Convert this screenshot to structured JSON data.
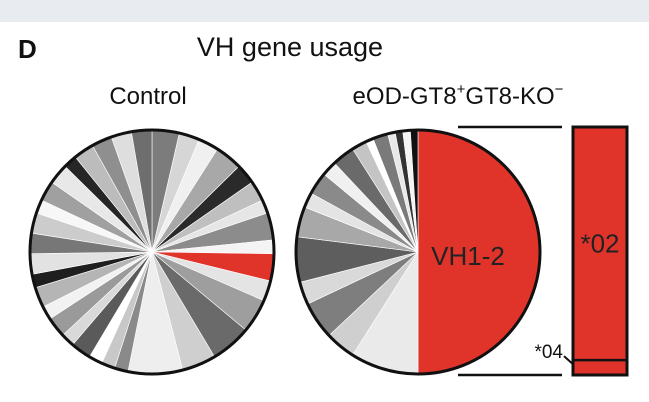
{
  "panel_label": "D",
  "chart_data": {
    "type": "pie",
    "title": "VH gene usage",
    "pies": [
      {
        "name": "Control",
        "highlight_color": "#e0342b",
        "slices": [
          {
            "value": 4,
            "color": "#7c7c7c"
          },
          {
            "value": 3,
            "color": "#d6d6d6"
          },
          {
            "value": 3,
            "color": "#f0f0f0"
          },
          {
            "value": 4,
            "color": "#a8a8a8"
          },
          {
            "value": 3,
            "color": "#2a2a2a"
          },
          {
            "value": 3,
            "color": "#bfbfbf"
          },
          {
            "value": 2,
            "color": "#e6e6e6"
          },
          {
            "value": 4,
            "color": "#8c8c8c"
          },
          {
            "value": 2,
            "color": "#f4f4f4"
          },
          {
            "value": 4,
            "color": "#e0342b"
          },
          {
            "value": 3,
            "color": "#e4e4e4"
          },
          {
            "value": 5,
            "color": "#9e9e9e"
          },
          {
            "value": 6,
            "color": "#6a6a6a"
          },
          {
            "value": 5,
            "color": "#cfcfcf"
          },
          {
            "value": 8,
            "color": "#eeeeee"
          },
          {
            "value": 2,
            "color": "#8a8a8a"
          },
          {
            "value": 2,
            "color": "#c8c8c8"
          },
          {
            "value": 2,
            "color": "#ffffff"
          },
          {
            "value": 3,
            "color": "#5a5a5a"
          },
          {
            "value": 2,
            "color": "#d9d9d9"
          },
          {
            "value": 3,
            "color": "#9a9a9a"
          },
          {
            "value": 2,
            "color": "#f2f2f2"
          },
          {
            "value": 3,
            "color": "#b5b5b5"
          },
          {
            "value": 2,
            "color": "#1e1e1e"
          },
          {
            "value": 3,
            "color": "#e2e2e2"
          },
          {
            "value": 3,
            "color": "#777777"
          },
          {
            "value": 3,
            "color": "#cccccc"
          },
          {
            "value": 2,
            "color": "#f7f7f7"
          },
          {
            "value": 3,
            "color": "#a0a0a0"
          },
          {
            "value": 3,
            "color": "#e8e8e8"
          },
          {
            "value": 2,
            "color": "#262626"
          },
          {
            "value": 3,
            "color": "#bcbcbc"
          },
          {
            "value": 3,
            "color": "#8f8f8f"
          },
          {
            "value": 3,
            "color": "#dedede"
          },
          {
            "value": 3,
            "color": "#6e6e6e"
          }
        ]
      },
      {
        "name": "eOD-GT8",
        "name_sup1": "+",
        "name_mid": "GT8-KO",
        "name_sup2": "−",
        "slices": [
          {
            "value": 50,
            "color": "#e0342b",
            "label": "VH1-2"
          },
          {
            "value": 9,
            "color": "#eaeaea"
          },
          {
            "value": 4,
            "color": "#cfcfcf"
          },
          {
            "value": 5,
            "color": "#7e7e7e"
          },
          {
            "value": 3,
            "color": "#d9d9d9"
          },
          {
            "value": 6,
            "color": "#5e5e5e"
          },
          {
            "value": 4,
            "color": "#a8a8a8"
          },
          {
            "value": 2,
            "color": "#e4e4e4"
          },
          {
            "value": 3,
            "color": "#8a8a8a"
          },
          {
            "value": 2,
            "color": "#f0f0f0"
          },
          {
            "value": 3,
            "color": "#6a6a6a"
          },
          {
            "value": 2,
            "color": "#c4c4c4"
          },
          {
            "value": 1,
            "color": "#ffffff"
          },
          {
            "value": 2,
            "color": "#7a7a7a"
          },
          {
            "value": 1,
            "color": "#e8e8e8"
          },
          {
            "value": 1,
            "color": "#333333"
          },
          {
            "value": 1,
            "color": "#f4f4f4"
          },
          {
            "value": 1,
            "color": "#111111"
          }
        ]
      }
    ],
    "breakdown": {
      "of": "VH1-2",
      "color": "#e0342b",
      "segments": [
        {
          "label": "*02",
          "value": 94
        },
        {
          "label": "*04",
          "value": 6
        }
      ]
    }
  }
}
